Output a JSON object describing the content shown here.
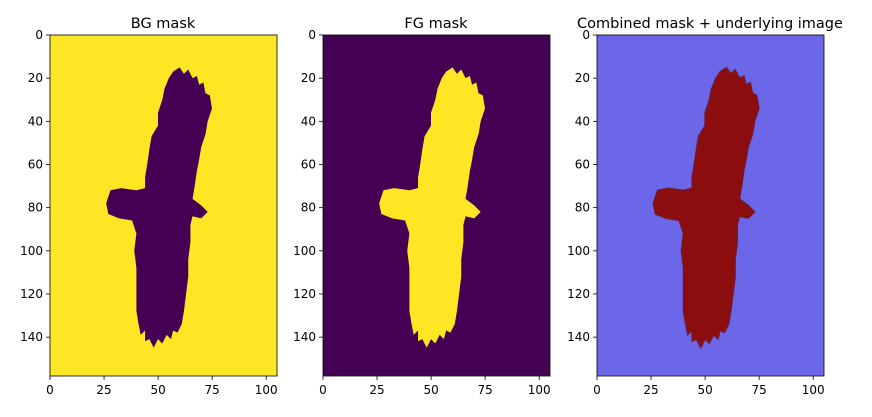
{
  "colors": {
    "viridis_low": "#440154",
    "viridis_high": "#fde725",
    "overlay_bg": "#6b67e8",
    "overlay_fg": "#8b0a0a",
    "axis": "#000000"
  },
  "chart_data": [
    {
      "type": "heatmap",
      "title": "BG mask",
      "xlim": [
        0,
        105
      ],
      "ylim": [
        158,
        0
      ],
      "x_ticks": [
        "0",
        "25",
        "50",
        "75",
        "100"
      ],
      "y_ticks": [
        "0",
        "20",
        "40",
        "60",
        "80",
        "100",
        "120",
        "140"
      ],
      "values_description": "binary",
      "background_value": 1,
      "foreground_value": 0
    },
    {
      "type": "heatmap",
      "title": "FG mask",
      "xlim": [
        0,
        105
      ],
      "ylim": [
        158,
        0
      ],
      "x_ticks": [
        "0",
        "25",
        "50",
        "75",
        "100"
      ],
      "y_ticks": [
        "0",
        "20",
        "40",
        "60",
        "80",
        "100",
        "120",
        "140"
      ],
      "values_description": "binary",
      "background_value": 0,
      "foreground_value": 1
    },
    {
      "type": "heatmap",
      "title": "Combined mask + underlying image",
      "xlim": [
        0,
        105
      ],
      "ylim": [
        158,
        0
      ],
      "x_ticks": [
        "0",
        "25",
        "50",
        "75",
        "100"
      ],
      "y_ticks": [
        "0",
        "20",
        "40",
        "60",
        "80",
        "100",
        "120",
        "140"
      ]
    }
  ]
}
